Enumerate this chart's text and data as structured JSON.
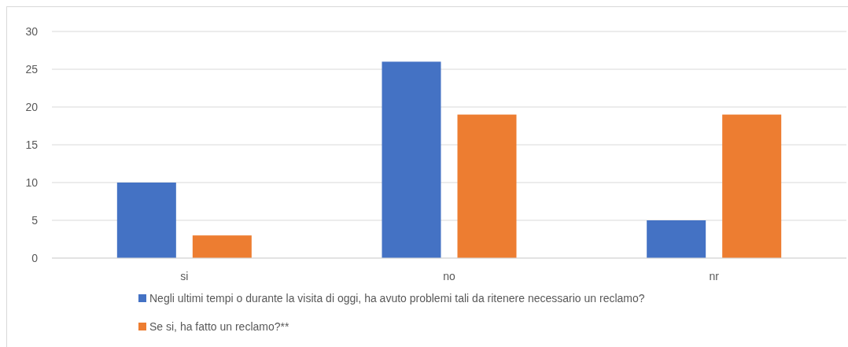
{
  "chart_data": {
    "type": "bar",
    "categories": [
      "si",
      "no",
      "nr"
    ],
    "series": [
      {
        "name": "Negli ultimi tempi o durante la visita di oggi, ha avuto problemi tali da ritenere necessario un reclamo?",
        "color": "#4472c4",
        "values": [
          10,
          26,
          5
        ]
      },
      {
        "name": "Se si, ha fatto un reclamo?**",
        "color": "#ed7d31",
        "values": [
          3,
          19,
          19
        ]
      }
    ],
    "ylim": [
      0,
      30
    ],
    "yticks": [
      0,
      5,
      10,
      15,
      20,
      25,
      30
    ],
    "grid": "y",
    "legend": "bottom"
  }
}
